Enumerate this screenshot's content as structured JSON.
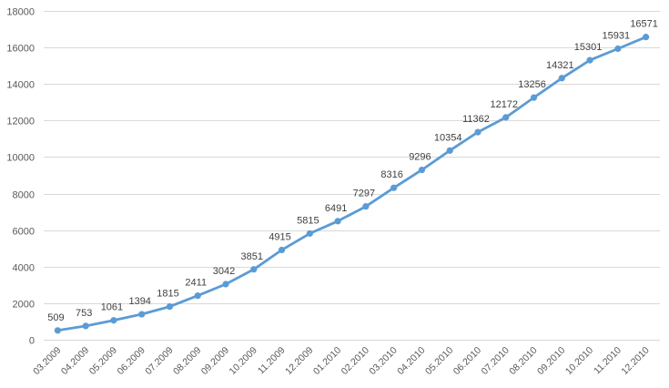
{
  "chart_data": {
    "type": "line",
    "title": "",
    "xlabel": "",
    "ylabel": "",
    "categories": [
      "03.2009",
      "04.2009",
      "05.2009",
      "06.2009",
      "07.2009",
      "08.2009",
      "09.2009",
      "10.2009",
      "11.2009",
      "12.2009",
      "01.2010",
      "02.2010",
      "03.2010",
      "04.2010",
      "05.2010",
      "06.2010",
      "07.2010",
      "08.2010",
      "09.2010",
      "10.2010",
      "11.2010",
      "12.2010"
    ],
    "series": [
      {
        "name": "Series 1",
        "color": "#5b9bd5",
        "values": [
          509,
          753,
          1061,
          1394,
          1815,
          2411,
          3042,
          3851,
          4915,
          5815,
          6491,
          7297,
          8316,
          9296,
          10354,
          11362,
          12172,
          13256,
          14321,
          15301,
          15931,
          16571
        ]
      }
    ],
    "ylim": [
      0,
      18000
    ],
    "yticks": [
      0,
      2000,
      4000,
      6000,
      8000,
      10000,
      12000,
      14000,
      16000,
      18000
    ],
    "grid": true,
    "legend": "none",
    "data_labels": true
  }
}
